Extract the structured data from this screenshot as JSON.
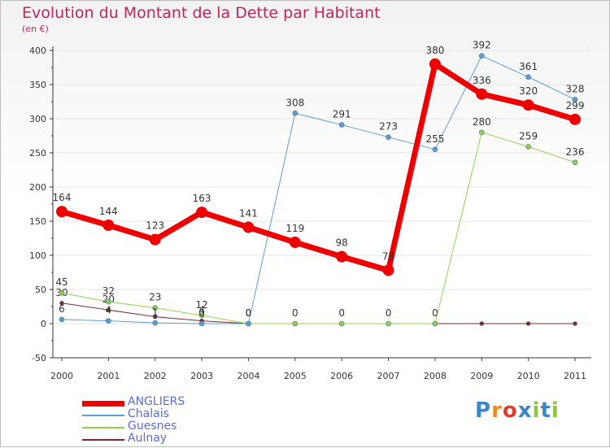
{
  "header": {
    "title": "Evolution du Montant de la Dette par Habitant",
    "subtitle": "(en €)"
  },
  "colors": {
    "title": "#c0245c",
    "axis": "#333333",
    "grid": "#e6e6e6",
    "legend_text": "#5b6bd6"
  },
  "chart_data": {
    "type": "line",
    "title": "Evolution du Montant de la Dette par Habitant",
    "subtitle": "(en €)",
    "xlabel": "",
    "ylabel": "",
    "ylim": [
      -50,
      400
    ],
    "y_ticks": [
      -50,
      0,
      50,
      100,
      150,
      200,
      250,
      300,
      350,
      400
    ],
    "x": [
      "2000",
      "2001",
      "2002",
      "2003",
      "2004",
      "2005",
      "2006",
      "2007",
      "2008",
      "2009",
      "2010",
      "2011"
    ],
    "grid": "horizontal",
    "legend_position": "bottom-left",
    "series": [
      {
        "name": "Aulnay",
        "color": "#7a2a2a",
        "width": 1,
        "marker": 2.5,
        "values": [
          30,
          20,
          10,
          4,
          0,
          0,
          0,
          0,
          0,
          0,
          0,
          0
        ],
        "labels": [
          "30",
          "20",
          "",
          "4",
          "0",
          "0",
          "0",
          "0",
          "0",
          "",
          "",
          ""
        ]
      },
      {
        "name": "Guesnes",
        "color": "#8fd14f",
        "width": 1,
        "marker": 3,
        "values": [
          45,
          32,
          23,
          12,
          0,
          0,
          0,
          0,
          0,
          280,
          259,
          236
        ],
        "labels": [
          "45",
          "32",
          "23",
          "12",
          "",
          "",
          "",
          "",
          "",
          "280",
          "259",
          "236"
        ]
      },
      {
        "name": "Chalais",
        "color": "#5a9ed4",
        "width": 1,
        "marker": 3,
        "values": [
          6,
          4,
          1,
          0,
          0,
          308,
          291,
          273,
          255,
          392,
          361,
          328
        ],
        "labels": [
          "6",
          "4",
          "1",
          "0",
          "0",
          "308",
          "291",
          "273",
          "255",
          "392",
          "361",
          "328"
        ]
      },
      {
        "name": "ANGLIERS",
        "color": "#ee0000",
        "width": 7,
        "marker": 7,
        "values": [
          164,
          144,
          123,
          163,
          141,
          119,
          98,
          78,
          380,
          336,
          320,
          299
        ],
        "labels": [
          "164",
          "144",
          "123",
          "163",
          "141",
          "119",
          "98",
          "78",
          "380",
          "336",
          "320",
          "299"
        ]
      }
    ]
  },
  "legend": [
    {
      "name": "ANGLIERS",
      "color": "#ee0000",
      "thickness": 7
    },
    {
      "name": "Chalais",
      "color": "#5a9ed4",
      "thickness": 2
    },
    {
      "name": "Guesnes",
      "color": "#8fd14f",
      "thickness": 2
    },
    {
      "name": "Aulnay",
      "color": "#7a2a2a",
      "thickness": 2
    }
  ],
  "logo": {
    "text": "Proxiti",
    "letter_colors": [
      "#3b86c8",
      "#f28a1b",
      "#e23b2e",
      "#3b86c8",
      "#8cc63f",
      "#3b86c8",
      "#8cc63f"
    ]
  }
}
